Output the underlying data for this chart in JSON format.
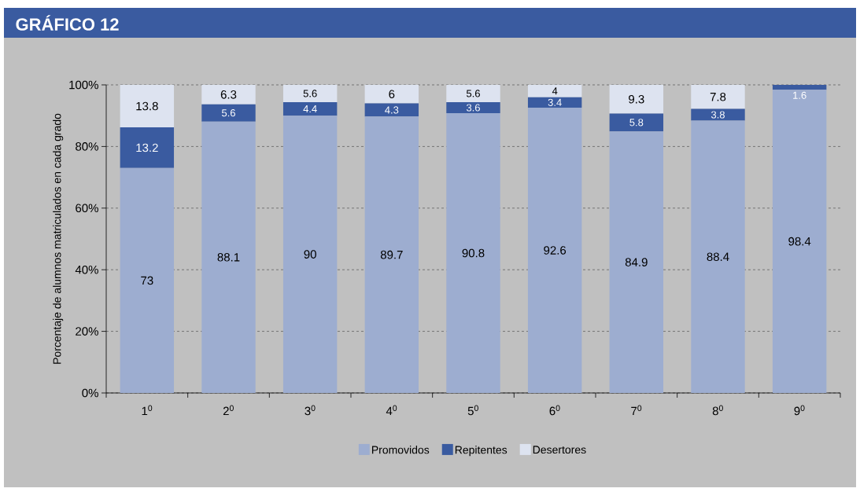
{
  "chart_data": {
    "type": "bar",
    "stacked": true,
    "title": "GRÁFICO 12",
    "ylabel": "Porcentaje de alumnos matriculados en cada grado",
    "categories": [
      "1$^{0}$",
      "2$^{0}$",
      "3$^{0}$",
      "4$^{0}$",
      "5$^{0}$",
      "6$^{0}$",
      "7$^{0}$",
      "8$^{0}$",
      "9$^{0}$"
    ],
    "series": [
      {
        "name": "Promovidos",
        "color": "#9dadd0",
        "values": [
          73,
          88.1,
          90,
          89.7,
          90.8,
          92.6,
          84.9,
          88.4,
          98.4
        ]
      },
      {
        "name": "Repitentes",
        "color": "#3a5ba0",
        "values": [
          13.2,
          5.6,
          4.4,
          4.3,
          3.6,
          3.4,
          5.8,
          3.8,
          1.6
        ]
      },
      {
        "name": "Desertores",
        "color": "#dde3f0",
        "values": [
          13.8,
          6.3,
          5.6,
          6,
          5.6,
          4,
          9.3,
          7.8,
          null
        ]
      }
    ],
    "ylim": [
      0,
      100
    ],
    "yticks": [
      {
        "value": 0,
        "label": "0%"
      },
      {
        "value": 20,
        "label": "20%"
      },
      {
        "value": 40,
        "label": "40%"
      },
      {
        "value": 60,
        "label": "60%"
      },
      {
        "value": 80,
        "label": "80%"
      },
      {
        "value": 100,
        "label": "100%"
      }
    ],
    "grid": "y",
    "legend": "bottom",
    "data_labels": true
  }
}
